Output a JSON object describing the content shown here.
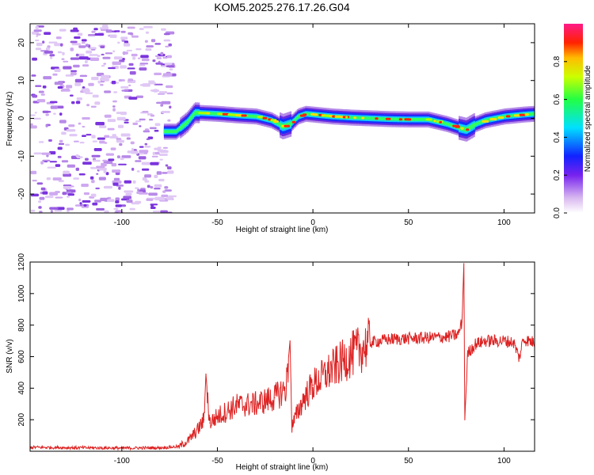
{
  "title": "KOM5.2025.276.17.26.G04",
  "chart_data": [
    {
      "type": "heatmap",
      "name": "spectrogram",
      "xlabel": "Height of straight line (km)",
      "ylabel": "Frequency (Hz)",
      "xlim": [
        -148,
        116
      ],
      "ylim": [
        -25,
        25
      ],
      "xticks": [
        -100,
        -50,
        0,
        50,
        100
      ],
      "yticks": [
        -20,
        -10,
        0,
        10,
        20
      ],
      "grid": false,
      "colorbar": {
        "label": "Normalized spectral amplitude",
        "range": [
          0,
          1
        ],
        "ticks": [
          0.0,
          0.2,
          0.4,
          0.6,
          0.8
        ]
      },
      "signal_track": [
        {
          "x": -78,
          "f": -3.5
        },
        {
          "x": -72,
          "f": -3.5
        },
        {
          "x": -66,
          "f": -1.0
        },
        {
          "x": -62,
          "f": 1.5
        },
        {
          "x": -50,
          "f": 1.2
        },
        {
          "x": -40,
          "f": 0.8
        },
        {
          "x": -30,
          "f": 0.5
        },
        {
          "x": -22,
          "f": -0.5
        },
        {
          "x": -16,
          "f": -2.2
        },
        {
          "x": -12,
          "f": -1.5
        },
        {
          "x": -8,
          "f": 0.5
        },
        {
          "x": -4,
          "f": 1.2
        },
        {
          "x": 0,
          "f": 1.0
        },
        {
          "x": 10,
          "f": 0.5
        },
        {
          "x": 20,
          "f": 0.2
        },
        {
          "x": 30,
          "f": 0.0
        },
        {
          "x": 40,
          "f": -0.2
        },
        {
          "x": 50,
          "f": -0.3
        },
        {
          "x": 60,
          "f": -0.3
        },
        {
          "x": 70,
          "f": -1.5
        },
        {
          "x": 76,
          "f": -2.5
        },
        {
          "x": 80,
          "f": -3.0
        },
        {
          "x": 85,
          "f": -1.5
        },
        {
          "x": 90,
          "f": -0.5
        },
        {
          "x": 100,
          "f": 0.5
        },
        {
          "x": 110,
          "f": 1.0
        },
        {
          "x": 116,
          "f": 1.2
        }
      ],
      "noise_region": {
        "x_range": [
          -148,
          -75
        ],
        "f_range": [
          -25,
          25
        ]
      }
    },
    {
      "type": "line",
      "name": "snr",
      "xlabel": "Height of straight line (km)",
      "ylabel": "SNR (v/v)",
      "xlim": [
        -148,
        116
      ],
      "ylim": [
        0,
        1200
      ],
      "xticks": [
        -100,
        -50,
        0,
        50,
        100
      ],
      "yticks": [
        200,
        400,
        600,
        800,
        1000,
        1200
      ],
      "grid": false,
      "color": "#dd2222",
      "series": [
        {
          "name": "SNR",
          "points": [
            {
              "x": -148,
              "y": 25
            },
            {
              "x": -120,
              "y": 22
            },
            {
              "x": -100,
              "y": 20
            },
            {
              "x": -80,
              "y": 22
            },
            {
              "x": -70,
              "y": 30
            },
            {
              "x": -65,
              "y": 70
            },
            {
              "x": -60,
              "y": 140
            },
            {
              "x": -57,
              "y": 200
            },
            {
              "x": -56,
              "y": 490
            },
            {
              "x": -54,
              "y": 180
            },
            {
              "x": -50,
              "y": 220
            },
            {
              "x": -40,
              "y": 290
            },
            {
              "x": -30,
              "y": 300
            },
            {
              "x": -20,
              "y": 340
            },
            {
              "x": -14,
              "y": 400
            },
            {
              "x": -12,
              "y": 700
            },
            {
              "x": -11,
              "y": 160
            },
            {
              "x": -5,
              "y": 330
            },
            {
              "x": 0,
              "y": 420
            },
            {
              "x": 10,
              "y": 520
            },
            {
              "x": 20,
              "y": 610
            },
            {
              "x": 30,
              "y": 690
            },
            {
              "x": 40,
              "y": 710
            },
            {
              "x": 50,
              "y": 715
            },
            {
              "x": 60,
              "y": 720
            },
            {
              "x": 70,
              "y": 725
            },
            {
              "x": 76,
              "y": 740
            },
            {
              "x": 78,
              "y": 820
            },
            {
              "x": 79,
              "y": 1190
            },
            {
              "x": 79.5,
              "y": 200
            },
            {
              "x": 81,
              "y": 620
            },
            {
              "x": 85,
              "y": 680
            },
            {
              "x": 90,
              "y": 700
            },
            {
              "x": 100,
              "y": 700
            },
            {
              "x": 105,
              "y": 690
            },
            {
              "x": 108,
              "y": 590
            },
            {
              "x": 110,
              "y": 710
            },
            {
              "x": 116,
              "y": 690
            }
          ]
        }
      ]
    }
  ]
}
